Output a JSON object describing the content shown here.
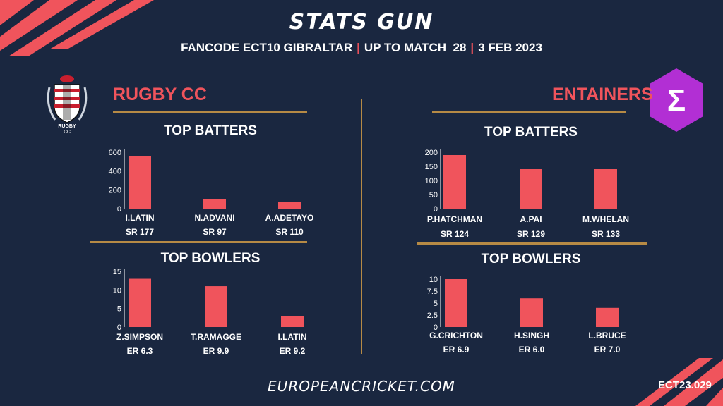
{
  "header": {
    "title": "STATS GUN",
    "subtitle_parts": [
      "FANCODE ECT10 GIBRALTAR",
      "UP TO MATCH  28",
      "3 FEB 2023"
    ]
  },
  "colors": {
    "background": "#1a2740",
    "bar": "#f0545c",
    "accent": "#b68a45",
    "team_name": "#f0545c",
    "badge": "#b22fd4"
  },
  "teams": [
    {
      "name": "RUGBY CC",
      "logo": "rugby-cc-crest-icon",
      "logo_text": [
        "RUGBY",
        "CC"
      ]
    },
    {
      "name": "ENTAINERS",
      "logo": "sigma-hexagon-icon",
      "logo_text": [
        "Σ"
      ]
    }
  ],
  "chart_data": [
    {
      "type": "bar",
      "team": "RUGBY CC",
      "title": "TOP BATTERS",
      "categories": [
        "I.LATIN",
        "N.ADVANI",
        "A.ADETAYO"
      ],
      "values": [
        555,
        100,
        70
      ],
      "sub_labels": [
        "SR 177",
        "SR 97",
        "SR 110"
      ],
      "yticks": [
        "0",
        "200",
        "400",
        "600"
      ],
      "ytick_values": [
        0,
        200,
        400,
        600
      ],
      "ylim": [
        0,
        600
      ],
      "grid": false
    },
    {
      "type": "bar",
      "team": "RUGBY CC",
      "title": "TOP BOWLERS",
      "categories": [
        "Z.SIMPSON",
        "T.RAMAGGE",
        "I.LATIN"
      ],
      "values": [
        13,
        11,
        3
      ],
      "sub_labels": [
        "ER 6.3",
        "ER 9.9",
        "ER 9.2"
      ],
      "yticks": [
        "0",
        "5",
        "10",
        "15"
      ],
      "ytick_values": [
        0,
        5,
        10,
        15
      ],
      "ylim": [
        0,
        15
      ],
      "grid": false
    },
    {
      "type": "bar",
      "team": "ENTAINERS",
      "title": "TOP BATTERS",
      "categories": [
        "P.HATCHMAN",
        "A.PAI",
        "M.WHELAN"
      ],
      "values": [
        190,
        140,
        140
      ],
      "sub_labels": [
        "SR 124",
        "SR 129",
        "SR 133"
      ],
      "yticks": [
        "0",
        "50",
        "100",
        "150",
        "200"
      ],
      "ytick_values": [
        0,
        50,
        100,
        150,
        200
      ],
      "ylim": [
        0,
        200
      ],
      "grid": false
    },
    {
      "type": "bar",
      "team": "ENTAINERS",
      "title": "TOP BOWLERS",
      "categories": [
        "G.CRICHTON",
        "H.SINGH",
        "L.BRUCE"
      ],
      "values": [
        10,
        6,
        4
      ],
      "sub_labels": [
        "ER 6.9",
        "ER 6.0",
        "ER 7.0"
      ],
      "yticks": [
        "0",
        "2.5",
        "5",
        "7.5",
        "10"
      ],
      "ytick_values": [
        0,
        2.5,
        5,
        7.5,
        10
      ],
      "ylim": [
        0,
        10
      ],
      "grid": false
    }
  ],
  "footer": {
    "website": "EUROPEANCRICKET.COM",
    "code": "ECT23.029"
  }
}
